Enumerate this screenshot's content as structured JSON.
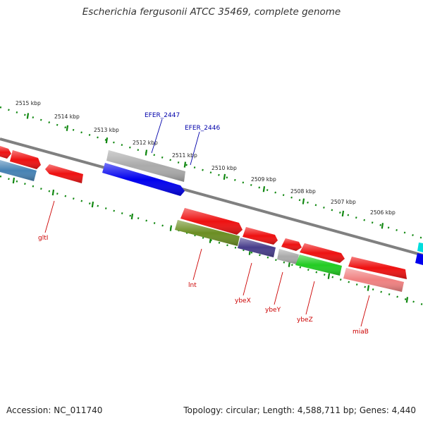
{
  "title": "Escherichia fergusonii ATCC 35469, complete genome",
  "footer": {
    "accession": "Accession: NC_011740",
    "summary": "Topology: circular; Length: 4,588,711 bp; Genes: 4,440"
  },
  "scale_labels": [
    "2515 kbp",
    "2514 kbp",
    "2513 kbp",
    "2512 kbp",
    "2511 kbp",
    "2510 kbp",
    "2509 kbp",
    "2508 kbp",
    "2507 kbp",
    "2506 kbp"
  ],
  "gene_labels": {
    "efer2447": "EFER_2447",
    "efer2446": "EFER_2446",
    "gltI": "gltI",
    "lnt": "lnt",
    "ybeX": "ybeX",
    "ybeY": "ybeY",
    "ybeZ": "ybeZ",
    "miaB": "miaB"
  },
  "colors": {
    "red": "#ee1111",
    "blue": "#0000ee",
    "steel": "#4682b4",
    "gray": "#aaaaaa",
    "olive": "#6b8e23",
    "slate": "#483d8b",
    "green": "#22cc22",
    "pink": "#f08080",
    "cyan": "#00dddd",
    "backbone": "#808080",
    "tick": "#118811",
    "label_red": "#cc0000",
    "label_blue": "#0000aa"
  }
}
